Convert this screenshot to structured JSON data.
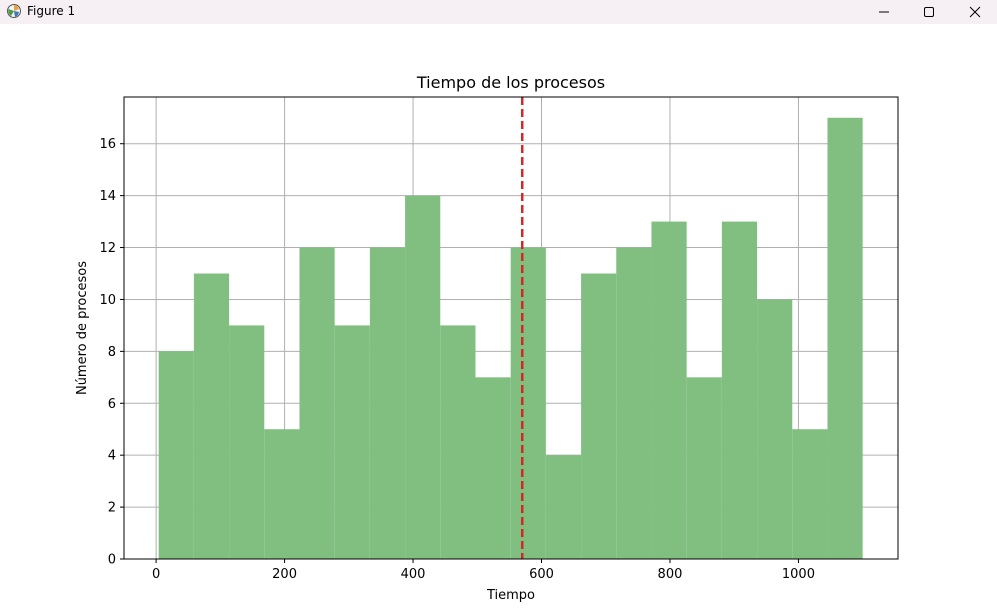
{
  "window": {
    "title": "Figure 1",
    "icons": {
      "app": "matplotlib-figure-icon",
      "minimize": "minimize-icon",
      "maximize": "maximize-icon",
      "close": "close-icon"
    }
  },
  "chart_data": {
    "type": "bar",
    "title": "Tiempo de los procesos",
    "xlabel": "Tiempo",
    "ylabel": "Número de procesos",
    "bin_edges": [
      4,
      58.8,
      113.6,
      168.4,
      223.2,
      278,
      332.8,
      387.6,
      442.4,
      497.2,
      552,
      606.8,
      661.6,
      716.4,
      771.2,
      826,
      880.8,
      935.6,
      990.4,
      1045.2,
      1100
    ],
    "values": [
      8,
      11,
      9,
      5,
      12,
      9,
      12,
      14,
      9,
      7,
      12,
      4,
      11,
      12,
      13,
      7,
      13,
      10,
      5,
      17
    ],
    "xlim": [
      -50,
      1155
    ],
    "ylim": [
      0,
      17.8
    ],
    "xticks": [
      0,
      200,
      400,
      600,
      800,
      1000
    ],
    "yticks": [
      0,
      2,
      4,
      6,
      8,
      10,
      12,
      14,
      16
    ],
    "vline": {
      "x": 570,
      "color": "#d62728",
      "style": "dashed"
    },
    "bar_color": "#81bf81",
    "grid": true
  }
}
